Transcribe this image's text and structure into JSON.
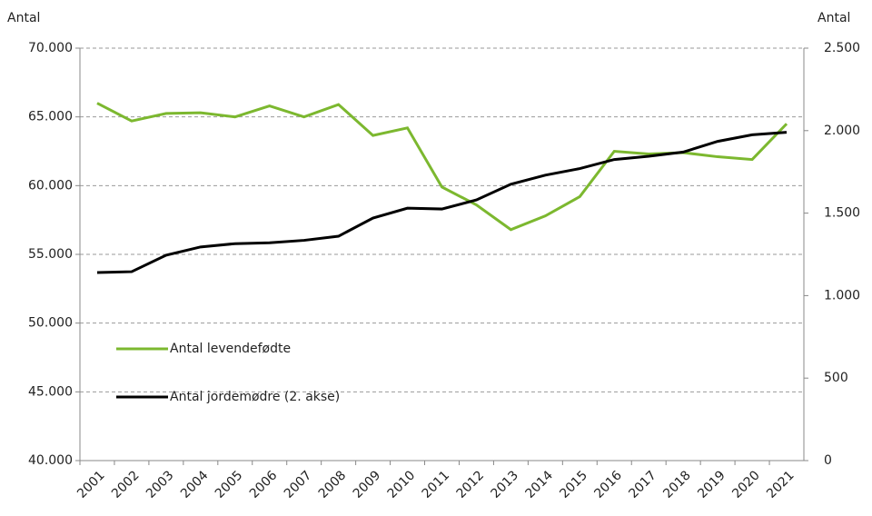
{
  "chart_data": {
    "type": "line",
    "y_label": "Antal",
    "y2_label": "Antal",
    "categories": [
      "2001",
      "2002",
      "2003",
      "2004",
      "2005",
      "2006",
      "2007",
      "2008",
      "2009",
      "2010",
      "2011",
      "2012",
      "2013",
      "2014",
      "2015",
      "2016",
      "2017",
      "2018",
      "2019",
      "2020",
      "2021"
    ],
    "series": [
      {
        "name": "Antal levendefødte",
        "color": "#7cb82f",
        "axis": "y",
        "values": [
          66000,
          64700,
          65250,
          65300,
          65000,
          65800,
          65000,
          65900,
          63650,
          64200,
          59900,
          58600,
          56800,
          57800,
          59200,
          62500,
          62300,
          62400,
          62100,
          61900,
          64500
        ]
      },
      {
        "name": "Antal jordemødre (2. akse)",
        "color": "#000000",
        "axis": "y2",
        "values": [
          1140,
          1145,
          1245,
          1295,
          1315,
          1320,
          1335,
          1360,
          1470,
          1530,
          1525,
          1580,
          1675,
          1730,
          1770,
          1825,
          1845,
          1870,
          1935,
          1975,
          1990
        ]
      }
    ],
    "ylim": [
      40000,
      70000
    ],
    "yticks": [
      {
        "value": 40000,
        "label": "40.000"
      },
      {
        "value": 45000,
        "label": "45.000"
      },
      {
        "value": 50000,
        "label": "50.000"
      },
      {
        "value": 55000,
        "label": "55.000"
      },
      {
        "value": 60000,
        "label": "60.000"
      },
      {
        "value": 65000,
        "label": "65.000"
      },
      {
        "value": 70000,
        "label": "70.000"
      }
    ],
    "y2lim": [
      0,
      2500
    ],
    "y2ticks": [
      0,
      500,
      {
        "value": 1000,
        "label": "1.000"
      },
      {
        "value": 1500,
        "label": "1.500"
      },
      {
        "value": 2000,
        "label": "2.000"
      },
      {
        "value": 2500,
        "label": "2.500"
      }
    ],
    "grid": true,
    "legend": "left"
  }
}
